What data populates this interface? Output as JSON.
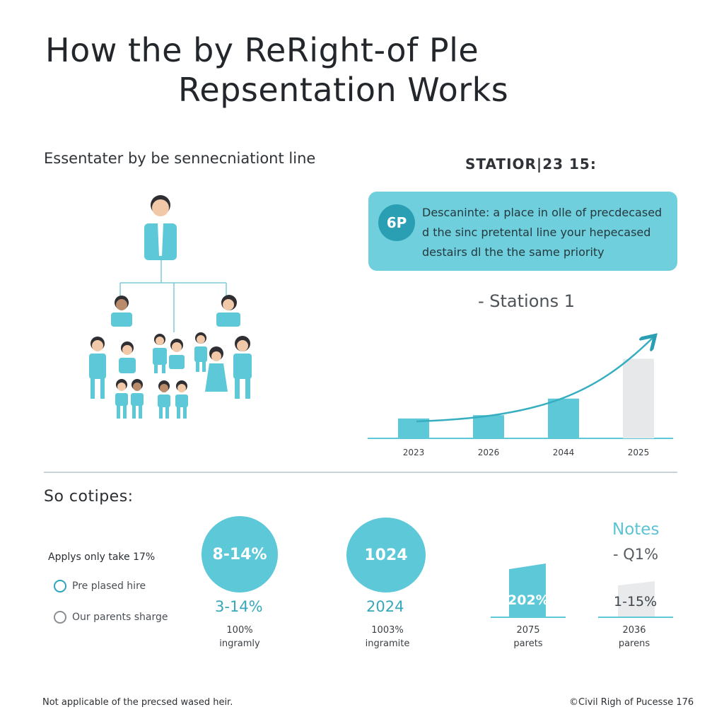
{
  "title": {
    "line1": "How the by ReRight-of Ple",
    "line2": "Repsentation Works"
  },
  "left_heading": "Essentater by be sennecniationt line",
  "right_heading": "STATIOR|23 15:",
  "callout": {
    "badge": "6P",
    "line1": "Descaninte: a place in olle of precdecased",
    "line2": "d the sinc pretental line your hepecased",
    "line3": "destairs dl the the same priority"
  },
  "stations_label": "- Stations 1",
  "chart_data": {
    "type": "bar",
    "title": "- Stations 1",
    "categories": [
      "2023",
      "2026",
      "2044",
      "2025"
    ],
    "values": [
      30,
      35,
      60,
      120
    ],
    "bar_colors": [
      "#5cc8d8",
      "#5cc8d8",
      "#5cc8d8",
      "#e6e8e9"
    ],
    "trend_line": true,
    "ylim": [
      0,
      160
    ],
    "xlabel": "",
    "ylabel": ""
  },
  "bottom_heading": "So cotipes:",
  "applies_text": "Applys only take 17%",
  "options": [
    {
      "label": "Pre plased hire",
      "selected": false
    },
    {
      "label": "Our parents sharge",
      "selected": false
    }
  ],
  "stats": [
    {
      "circle_text": "8-14%",
      "value": "3-14%",
      "sub1": "100%",
      "sub2": "ingramly"
    },
    {
      "circle_text": "1024",
      "value": "2024",
      "sub1": "1003%",
      "sub2": "ingramite"
    }
  ],
  "notes": {
    "title": "Notes",
    "q": "- Q1%"
  },
  "mini_bars": [
    {
      "label": "202%",
      "sub1": "2075",
      "sub2": "parets",
      "color": "#5cc8d8"
    },
    {
      "label": "1-15%",
      "sub1": "2036",
      "sub2": "parens",
      "color": "#e8eaeb"
    }
  ],
  "footer": {
    "left": "Not applicable of the precsed wased heir.",
    "right": "©Civil Righ of Pucesse 176"
  },
  "colors": {
    "accent": "#5cc8d8",
    "accent_dark": "#2a9fb3",
    "callout_bg": "#6fcfdd"
  }
}
